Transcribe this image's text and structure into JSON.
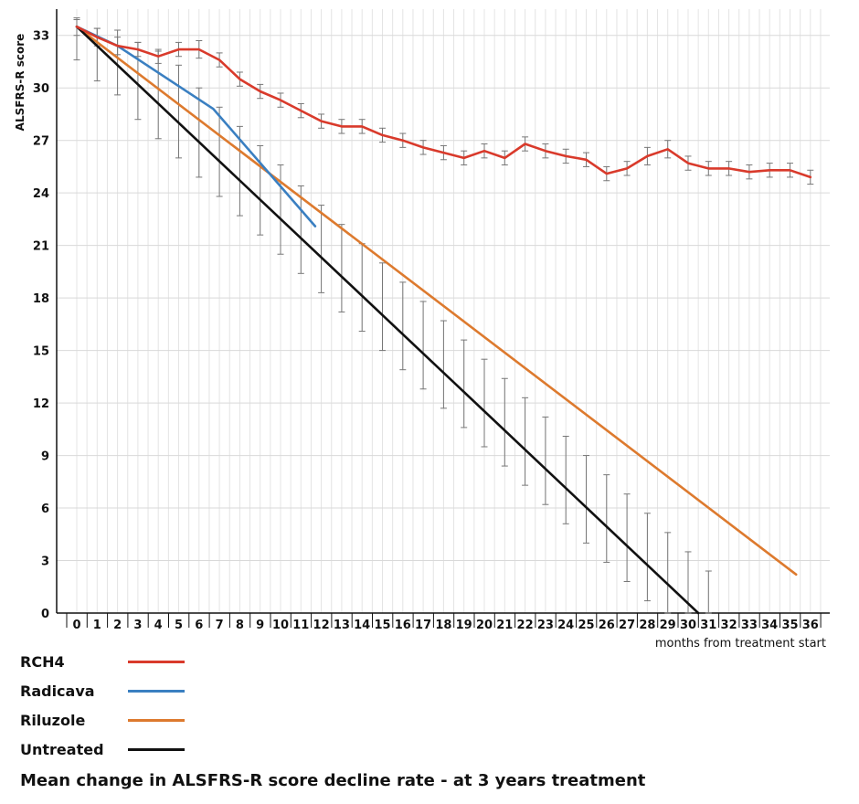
{
  "caption": "Mean change in ALSFRS-R score decline rate - at 3 years treatment",
  "chart_data": {
    "type": "line",
    "title": "Mean change in ALSFRS-R score decline rate - at 3 years treatment",
    "xlabel": "months from treatment start",
    "ylabel": "ALSFRS-R score",
    "xlim": [
      0,
      36
    ],
    "ylim": [
      0,
      34.5
    ],
    "x_ticks": [
      0,
      1,
      2,
      3,
      4,
      5,
      6,
      7,
      8,
      9,
      10,
      11,
      12,
      13,
      14,
      15,
      16,
      17,
      18,
      19,
      20,
      21,
      22,
      23,
      24,
      25,
      26,
      27,
      28,
      29,
      30,
      31,
      32,
      33,
      34,
      35,
      36
    ],
    "y_ticks": [
      0,
      3,
      6,
      9,
      12,
      15,
      18,
      21,
      24,
      27,
      30,
      33
    ],
    "grid": true,
    "legend_position": "bottom-left",
    "series": [
      {
        "name": "RCH4",
        "color": "#d93a2b",
        "x": [
          0,
          1,
          2,
          3,
          4,
          5,
          6,
          7,
          8,
          9,
          10,
          11,
          12,
          13,
          14,
          15,
          16,
          17,
          18,
          19,
          20,
          21,
          22,
          23,
          24,
          25,
          26,
          27,
          28,
          29,
          30,
          31,
          32,
          33,
          34,
          35,
          36
        ],
        "y": [
          33.5,
          32.9,
          32.4,
          32.2,
          31.8,
          32.2,
          32.2,
          31.6,
          30.5,
          29.8,
          29.3,
          28.7,
          28.1,
          27.8,
          27.8,
          27.3,
          27.0,
          26.6,
          26.3,
          26.0,
          26.4,
          26.0,
          26.8,
          26.4,
          26.1,
          25.9,
          25.1,
          25.4,
          26.1,
          26.5,
          25.7,
          25.4,
          25.4,
          25.2,
          25.3,
          25.3,
          24.9
        ],
        "error": [
          0.5,
          0.5,
          0.5,
          0.4,
          0.4,
          0.4,
          0.5,
          0.4,
          0.4,
          0.4,
          0.4,
          0.4,
          0.4,
          0.4,
          0.4,
          0.4,
          0.4,
          0.4,
          0.4,
          0.4,
          0.4,
          0.4,
          0.4,
          0.4,
          0.4,
          0.4,
          0.4,
          0.4,
          0.5,
          0.5,
          0.4,
          0.4,
          0.4,
          0.4,
          0.4,
          0.4,
          0.4
        ]
      },
      {
        "name": "Radicava",
        "color": "#3a7fc1",
        "x": [
          0,
          2,
          6.7,
          11.7
        ],
        "y": [
          33.5,
          32.4,
          28.8,
          22.1
        ]
      },
      {
        "name": "Riluzole",
        "color": "#dd7a2e",
        "x": [
          0,
          35.3
        ],
        "y": [
          33.5,
          2.2
        ]
      },
      {
        "name": "Untreated",
        "color": "#111111",
        "x": [
          0,
          30.5
        ],
        "y": [
          33.5,
          0
        ],
        "error_x": [
          0,
          1,
          2,
          3,
          4,
          5,
          6,
          7,
          8,
          9,
          10,
          11,
          12,
          13,
          14,
          15,
          16,
          17,
          18,
          19,
          20,
          21,
          22,
          23,
          24,
          25,
          26,
          27,
          28,
          29,
          30,
          31
        ],
        "error_low": [
          31.6,
          30.4,
          29.6,
          28.2,
          27.1,
          26.0,
          24.9,
          23.8,
          22.7,
          21.6,
          20.5,
          19.4,
          18.3,
          17.2,
          16.1,
          15.0,
          13.9,
          12.8,
          11.7,
          10.6,
          9.5,
          8.4,
          7.3,
          6.2,
          5.1,
          4.0,
          2.9,
          1.8,
          0.7,
          0.0,
          0.0,
          0.0
        ],
        "error_high": [
          33.9,
          33.4,
          33.3,
          32.6,
          32.1,
          31.3,
          30.0,
          28.9,
          27.8,
          26.7,
          25.6,
          24.4,
          23.3,
          22.2,
          21.1,
          20.0,
          18.9,
          17.8,
          16.7,
          15.6,
          14.5,
          13.4,
          12.3,
          11.2,
          10.1,
          9.0,
          7.9,
          6.8,
          5.7,
          4.6,
          3.5,
          2.4
        ]
      }
    ]
  }
}
